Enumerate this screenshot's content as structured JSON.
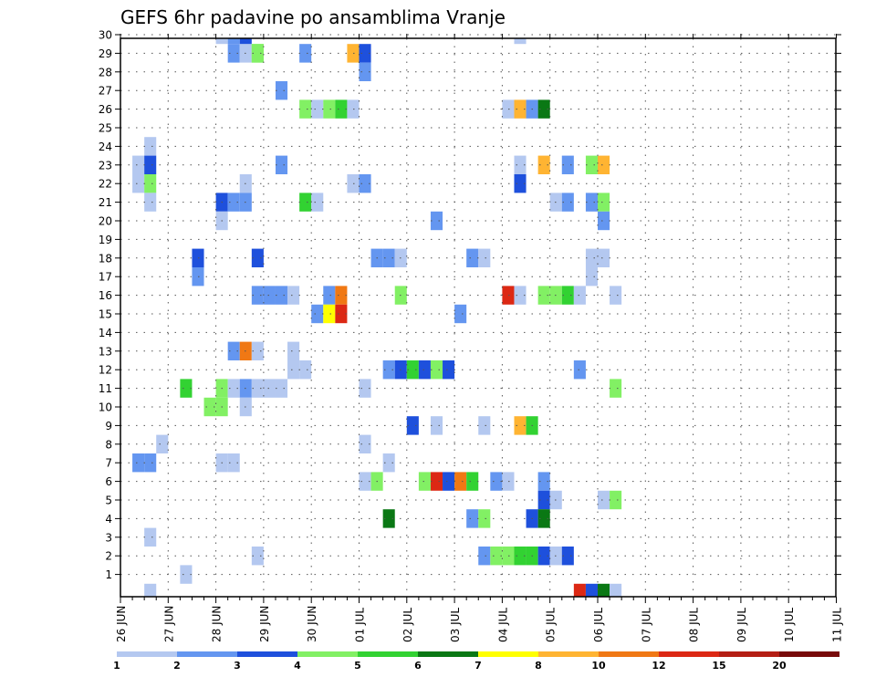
{
  "chart_data": {
    "type": "heatmap",
    "title": "GEFS 6hr padavine po ansamblima Vranje",
    "x_ticks": [
      "26 JUN",
      "27 JUN",
      "28 JUN",
      "29 JUN",
      "30 JUN",
      "01 JUL",
      "02 JUL",
      "03 JUL",
      "04 JUL",
      "05 JUL",
      "06 JUL",
      "07 JUL",
      "08 JUL",
      "09 JUL",
      "10 JUL",
      "11 JUL"
    ],
    "y_ticks": [
      "1",
      "2",
      "3",
      "4",
      "5",
      "6",
      "7",
      "8",
      "9",
      "10",
      "11",
      "12",
      "13",
      "14",
      "15",
      "16",
      "17",
      "18",
      "19",
      "20",
      "21",
      "22",
      "23",
      "24",
      "25",
      "26",
      "27",
      "28",
      "29",
      "30"
    ],
    "grid": true,
    "legend_placement": "bottom",
    "colorbar": {
      "labels": [
        "1",
        "2",
        "3",
        "4",
        "5",
        "6",
        "7",
        "8",
        "10",
        "12",
        "15",
        "20"
      ],
      "colors": [
        "#b4c8f0",
        "#6496f0",
        "#1e50dc",
        "#82f064",
        "#32d232",
        "#0a7814",
        "#ffff00",
        "#ffb432",
        "#f07814",
        "#dc2814",
        "#b41e14",
        "#780a0a"
      ]
    },
    "palette": {
      "1": "#b4c8f0",
      "2": "#6496f0",
      "3": "#1e50dc",
      "4": "#82f064",
      "5": "#32d232",
      "6": "#0a7814",
      "7": "#ffff00",
      "8": "#ffb432",
      "10": "#f07814",
      "12": "#dc2814",
      "15": "#b41e14",
      "20": "#780a0a"
    },
    "cell_bins": "each cell: [time step (6h steps since 26 JUN 00Z), member, lower bound of precipitation bin]",
    "cells": [
      [
        8,
        30,
        1
      ],
      [
        9,
        30,
        2
      ],
      [
        9,
        29,
        2
      ],
      [
        10,
        29,
        1
      ],
      [
        11,
        29,
        4
      ],
      [
        10,
        30,
        3
      ],
      [
        11,
        29,
        4
      ],
      [
        15,
        29,
        2
      ],
      [
        19,
        29,
        8
      ],
      [
        20,
        29,
        3
      ],
      [
        20,
        28,
        2
      ],
      [
        33,
        30,
        1
      ],
      [
        13,
        27,
        2
      ],
      [
        15,
        26,
        4
      ],
      [
        16,
        26,
        1
      ],
      [
        17,
        26,
        4
      ],
      [
        18,
        26,
        5
      ],
      [
        19,
        26,
        1
      ],
      [
        32,
        26,
        1
      ],
      [
        33,
        26,
        8
      ],
      [
        34,
        26,
        2
      ],
      [
        35,
        26,
        6
      ],
      [
        1,
        23,
        1
      ],
      [
        1,
        22,
        1
      ],
      [
        2,
        24,
        1
      ],
      [
        2,
        23,
        3
      ],
      [
        2,
        22,
        4
      ],
      [
        2,
        21,
        1
      ],
      [
        13,
        23,
        2
      ],
      [
        10,
        22,
        1
      ],
      [
        19,
        22,
        1
      ],
      [
        20,
        22,
        2
      ],
      [
        33,
        23,
        1
      ],
      [
        33,
        22,
        3
      ],
      [
        35,
        23,
        8
      ],
      [
        37,
        23,
        2
      ],
      [
        39,
        23,
        4
      ],
      [
        40,
        23,
        8
      ],
      [
        8,
        21,
        3
      ],
      [
        9,
        21,
        2
      ],
      [
        10,
        21,
        2
      ],
      [
        15,
        21,
        5
      ],
      [
        16,
        21,
        1
      ],
      [
        36,
        21,
        1
      ],
      [
        37,
        21,
        2
      ],
      [
        39,
        21,
        2
      ],
      [
        40,
        21,
        4
      ],
      [
        8,
        20,
        1
      ],
      [
        26,
        20,
        2
      ],
      [
        40,
        20,
        2
      ],
      [
        6,
        18,
        3
      ],
      [
        6,
        17,
        2
      ],
      [
        11,
        18,
        3
      ],
      [
        21,
        18,
        2
      ],
      [
        22,
        18,
        2
      ],
      [
        23,
        18,
        1
      ],
      [
        29,
        18,
        2
      ],
      [
        30,
        18,
        1
      ],
      [
        39,
        18,
        1
      ],
      [
        40,
        18,
        1
      ],
      [
        39,
        17,
        1
      ],
      [
        11,
        16,
        2
      ],
      [
        12,
        16,
        2
      ],
      [
        13,
        16,
        2
      ],
      [
        14,
        16,
        1
      ],
      [
        17,
        16,
        2
      ],
      [
        18,
        16,
        10
      ],
      [
        23,
        16,
        4
      ],
      [
        32,
        16,
        12
      ],
      [
        33,
        16,
        1
      ],
      [
        35,
        16,
        4
      ],
      [
        36,
        16,
        4
      ],
      [
        37,
        16,
        5
      ],
      [
        38,
        16,
        1
      ],
      [
        41,
        16,
        1
      ],
      [
        16,
        15,
        2
      ],
      [
        17,
        15,
        7
      ],
      [
        18,
        15,
        12
      ],
      [
        28,
        15,
        2
      ],
      [
        9,
        13,
        2
      ],
      [
        10,
        13,
        10
      ],
      [
        11,
        13,
        1
      ],
      [
        14,
        13,
        1
      ],
      [
        14,
        12,
        1
      ],
      [
        15,
        12,
        1
      ],
      [
        22,
        12,
        2
      ],
      [
        23,
        12,
        3
      ],
      [
        24,
        12,
        5
      ],
      [
        25,
        12,
        3
      ],
      [
        26,
        12,
        4
      ],
      [
        27,
        12,
        3
      ],
      [
        38,
        12,
        2
      ],
      [
        5,
        11,
        5
      ],
      [
        8,
        11,
        4
      ],
      [
        9,
        11,
        1
      ],
      [
        10,
        11,
        2
      ],
      [
        11,
        11,
        1
      ],
      [
        12,
        11,
        1
      ],
      [
        13,
        11,
        1
      ],
      [
        20,
        11,
        1
      ],
      [
        41,
        11,
        4
      ],
      [
        7,
        10,
        4
      ],
      [
        8,
        10,
        4
      ],
      [
        10,
        10,
        1
      ],
      [
        24,
        9,
        3
      ],
      [
        26,
        9,
        1
      ],
      [
        30,
        9,
        1
      ],
      [
        33,
        9,
        8
      ],
      [
        34,
        9,
        5
      ],
      [
        3,
        8,
        1
      ],
      [
        20,
        8,
        1
      ],
      [
        1,
        7,
        2
      ],
      [
        2,
        7,
        2
      ],
      [
        8,
        7,
        1
      ],
      [
        9,
        7,
        1
      ],
      [
        22,
        7,
        1
      ],
      [
        20,
        6,
        1
      ],
      [
        21,
        6,
        4
      ],
      [
        25,
        6,
        4
      ],
      [
        26,
        6,
        12
      ],
      [
        27,
        6,
        3
      ],
      [
        28,
        6,
        10
      ],
      [
        29,
        6,
        5
      ],
      [
        31,
        6,
        2
      ],
      [
        32,
        6,
        1
      ],
      [
        35,
        6,
        2
      ],
      [
        35,
        5,
        3
      ],
      [
        36,
        5,
        1
      ],
      [
        40,
        5,
        1
      ],
      [
        41,
        5,
        4
      ],
      [
        22,
        4,
        6
      ],
      [
        29,
        4,
        2
      ],
      [
        30,
        4,
        4
      ],
      [
        34,
        4,
        3
      ],
      [
        35,
        4,
        6
      ],
      [
        2,
        3,
        1
      ],
      [
        11,
        2,
        1
      ],
      [
        30,
        2,
        2
      ],
      [
        31,
        2,
        4
      ],
      [
        32,
        2,
        4
      ],
      [
        33,
        2,
        5
      ],
      [
        34,
        2,
        5
      ],
      [
        35,
        2,
        3
      ],
      [
        36,
        2,
        1
      ],
      [
        37,
        2,
        3
      ],
      [
        5,
        1,
        1
      ],
      [
        2,
        0,
        1
      ],
      [
        38,
        0,
        12
      ],
      [
        39,
        0,
        3
      ],
      [
        40,
        0,
        6
      ],
      [
        41,
        0,
        1
      ]
    ]
  }
}
